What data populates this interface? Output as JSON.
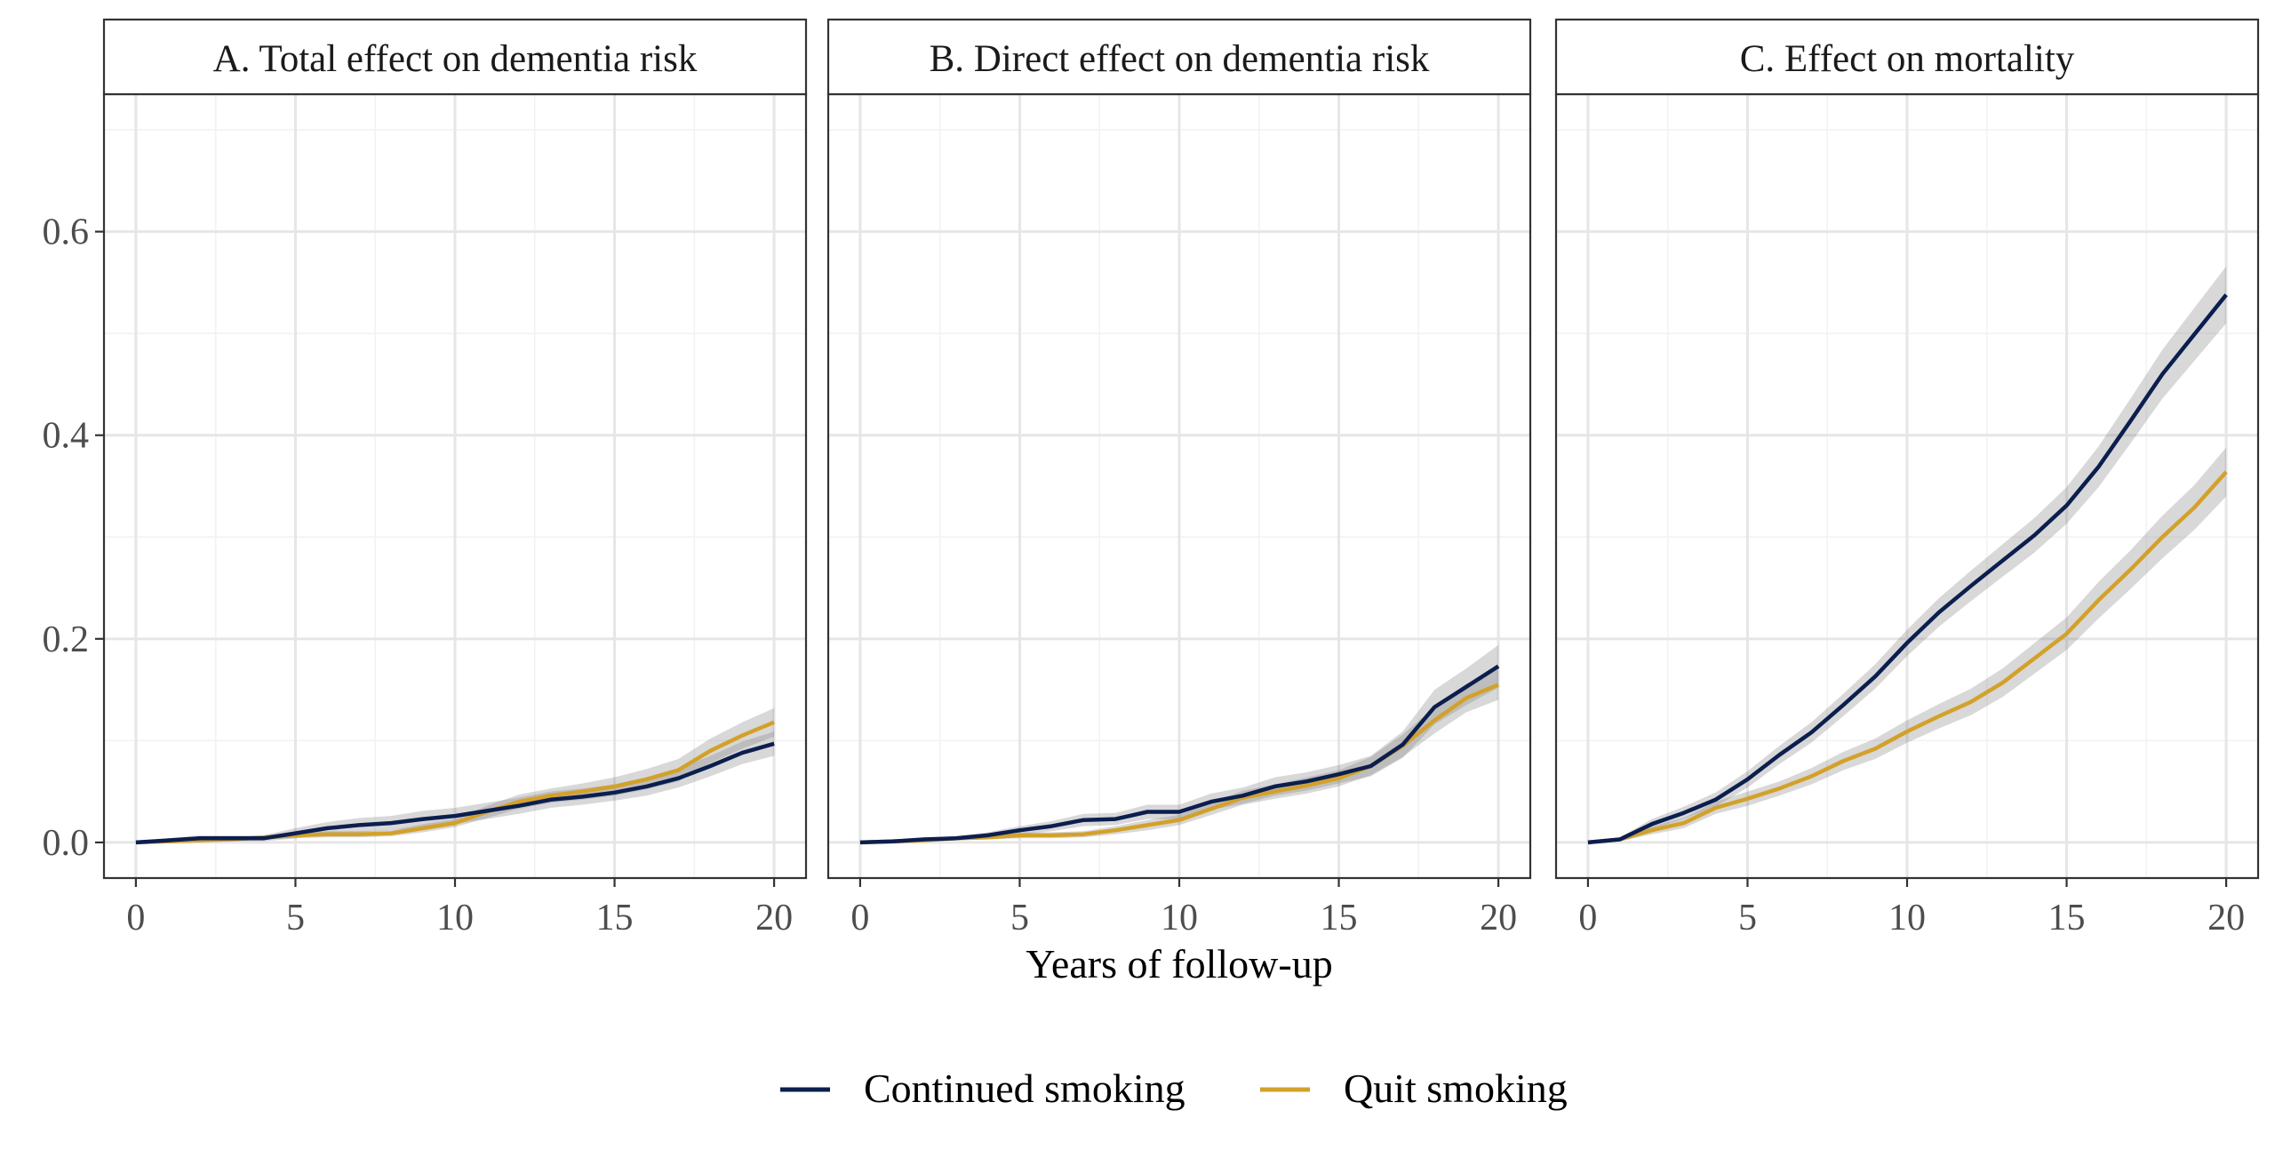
{
  "chart_data": {
    "type": "line",
    "xlabel": "Years of follow-up",
    "ylabel": "",
    "xlim": [
      -1,
      21
    ],
    "ylim": [
      -0.035,
      0.735
    ],
    "x_ticks": [
      0,
      5,
      10,
      15,
      20
    ],
    "x_tick_labels": [
      "0",
      "5",
      "10",
      "15",
      "20"
    ],
    "y_ticks": [
      0.0,
      0.2,
      0.4,
      0.6
    ],
    "y_tick_labels": [
      "0.0",
      "0.2",
      "0.4",
      "0.6"
    ],
    "grid": true,
    "confidence_bands": true,
    "legend": {
      "placement": "bottom",
      "entries": [
        {
          "label": "Continued smoking",
          "color": "#0b1e4e"
        },
        {
          "label": "Quit smoking",
          "color": "#d3a12a"
        }
      ]
    },
    "x": [
      0,
      1,
      2,
      3,
      4,
      5,
      6,
      7,
      8,
      9,
      10,
      11,
      12,
      13,
      14,
      15,
      16,
      17,
      18,
      19,
      20
    ],
    "panels": [
      {
        "title": "A. Total effect on dementia risk",
        "series": [
          {
            "name": "Continued smoking",
            "color": "#0b1e4e",
            "values": [
              0.0,
              0.002,
              0.004,
              0.004,
              0.004,
              0.009,
              0.014,
              0.017,
              0.019,
              0.023,
              0.026,
              0.031,
              0.036,
              0.042,
              0.045,
              0.049,
              0.055,
              0.063,
              0.075,
              0.088,
              0.097
            ],
            "lower": [
              0.0,
              0.0,
              0.001,
              0.001,
              0.001,
              0.004,
              0.008,
              0.01,
              0.012,
              0.015,
              0.018,
              0.023,
              0.028,
              0.034,
              0.037,
              0.041,
              0.046,
              0.054,
              0.065,
              0.077,
              0.085
            ],
            "upper": [
              0.0,
              0.004,
              0.007,
              0.007,
              0.007,
              0.014,
              0.02,
              0.024,
              0.026,
              0.031,
              0.034,
              0.039,
              0.044,
              0.05,
              0.053,
              0.057,
              0.064,
              0.072,
              0.085,
              0.099,
              0.109
            ]
          },
          {
            "name": "Quit smoking",
            "color": "#d3a12a",
            "values": [
              0.0,
              0.001,
              0.002,
              0.003,
              0.005,
              0.007,
              0.008,
              0.008,
              0.009,
              0.014,
              0.019,
              0.03,
              0.04,
              0.046,
              0.05,
              0.055,
              0.062,
              0.071,
              0.09,
              0.105,
              0.118
            ],
            "lower": [
              0.0,
              0.0,
              0.0,
              0.001,
              0.003,
              0.004,
              0.005,
              0.005,
              0.006,
              0.01,
              0.015,
              0.024,
              0.033,
              0.039,
              0.042,
              0.046,
              0.052,
              0.06,
              0.078,
              0.092,
              0.104
            ],
            "upper": [
              0.0,
              0.002,
              0.004,
              0.005,
              0.007,
              0.01,
              0.011,
              0.011,
              0.012,
              0.018,
              0.023,
              0.036,
              0.047,
              0.053,
              0.058,
              0.064,
              0.072,
              0.082,
              0.102,
              0.118,
              0.132
            ]
          }
        ]
      },
      {
        "title": "B. Direct effect on dementia risk",
        "series": [
          {
            "name": "Continued smoking",
            "color": "#0b1e4e",
            "values": [
              0.0,
              0.001,
              0.003,
              0.004,
              0.007,
              0.012,
              0.016,
              0.022,
              0.023,
              0.03,
              0.03,
              0.04,
              0.046,
              0.055,
              0.06,
              0.067,
              0.075,
              0.096,
              0.133,
              0.153,
              0.173
            ],
            "lower": [
              0.0,
              0.0,
              0.001,
              0.002,
              0.004,
              0.008,
              0.011,
              0.016,
              0.017,
              0.023,
              0.023,
              0.032,
              0.038,
              0.046,
              0.051,
              0.058,
              0.065,
              0.083,
              0.116,
              0.135,
              0.152
            ],
            "upper": [
              0.0,
              0.002,
              0.005,
              0.006,
              0.01,
              0.016,
              0.021,
              0.028,
              0.029,
              0.037,
              0.037,
              0.048,
              0.054,
              0.064,
              0.069,
              0.076,
              0.085,
              0.109,
              0.15,
              0.171,
              0.194
            ]
          },
          {
            "name": "Quit smoking",
            "color": "#d3a12a",
            "values": [
              0.0,
              0.001,
              0.002,
              0.004,
              0.005,
              0.007,
              0.007,
              0.008,
              0.012,
              0.017,
              0.022,
              0.033,
              0.044,
              0.05,
              0.056,
              0.063,
              0.075,
              0.095,
              0.12,
              0.142,
              0.155
            ],
            "lower": [
              0.0,
              0.0,
              0.001,
              0.002,
              0.003,
              0.004,
              0.004,
              0.005,
              0.008,
              0.012,
              0.017,
              0.027,
              0.037,
              0.043,
              0.048,
              0.055,
              0.066,
              0.084,
              0.107,
              0.128,
              0.14
            ],
            "upper": [
              0.0,
              0.002,
              0.003,
              0.006,
              0.007,
              0.01,
              0.01,
              0.011,
              0.016,
              0.022,
              0.027,
              0.039,
              0.051,
              0.057,
              0.064,
              0.071,
              0.084,
              0.106,
              0.133,
              0.156,
              0.17
            ]
          }
        ]
      },
      {
        "title": "C. Effect on mortality",
        "series": [
          {
            "name": "Continued smoking",
            "color": "#0b1e4e",
            "values": [
              0.0,
              0.003,
              0.018,
              0.029,
              0.042,
              0.062,
              0.086,
              0.108,
              0.135,
              0.163,
              0.196,
              0.226,
              0.252,
              0.277,
              0.302,
              0.331,
              0.369,
              0.414,
              0.46,
              0.499,
              0.538
            ],
            "lower": [
              0.0,
              0.001,
              0.013,
              0.023,
              0.035,
              0.054,
              0.077,
              0.098,
              0.124,
              0.151,
              0.183,
              0.212,
              0.237,
              0.261,
              0.285,
              0.313,
              0.349,
              0.392,
              0.436,
              0.473,
              0.51
            ],
            "upper": [
              0.0,
              0.005,
              0.023,
              0.035,
              0.049,
              0.07,
              0.095,
              0.118,
              0.146,
              0.175,
              0.209,
              0.24,
              0.267,
              0.293,
              0.319,
              0.349,
              0.389,
              0.436,
              0.484,
              0.525,
              0.566
            ]
          },
          {
            "name": "Quit smoking",
            "color": "#d3a12a",
            "values": [
              0.0,
              0.003,
              0.012,
              0.019,
              0.034,
              0.043,
              0.053,
              0.065,
              0.08,
              0.092,
              0.109,
              0.124,
              0.138,
              0.157,
              0.181,
              0.205,
              0.238,
              0.268,
              0.3,
              0.329,
              0.364
            ],
            "lower": [
              0.0,
              0.001,
              0.008,
              0.014,
              0.028,
              0.036,
              0.046,
              0.057,
              0.071,
              0.082,
              0.098,
              0.112,
              0.125,
              0.143,
              0.166,
              0.189,
              0.22,
              0.249,
              0.279,
              0.307,
              0.34
            ],
            "upper": [
              0.0,
              0.005,
              0.016,
              0.024,
              0.04,
              0.05,
              0.06,
              0.073,
              0.089,
              0.102,
              0.12,
              0.136,
              0.151,
              0.171,
              0.196,
              0.221,
              0.256,
              0.287,
              0.321,
              0.351,
              0.388
            ]
          }
        ]
      }
    ]
  }
}
